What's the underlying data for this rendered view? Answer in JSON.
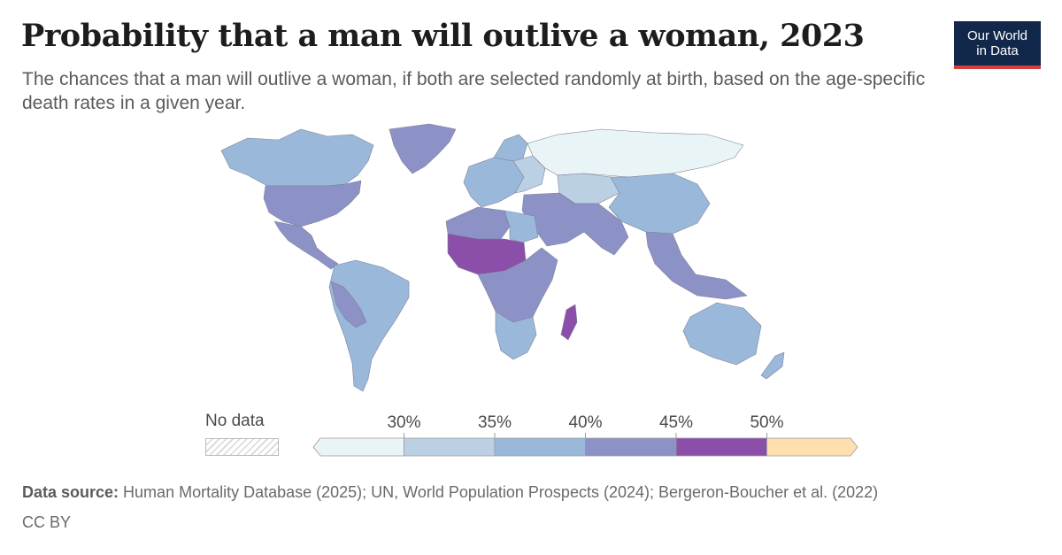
{
  "title": "Probability that a man will outlive a woman, 2023",
  "subtitle": "The chances that a man will outlive a woman, if both are selected randomly at birth, based on the age-specific death rates in a given year.",
  "logo": {
    "line1": "Our World",
    "line2": "in Data"
  },
  "chart_data": {
    "type": "choropleth",
    "year": 2023,
    "unit": "%",
    "legend": {
      "no_data_label": "No data",
      "thresholds": [
        "30%",
        "35%",
        "40%",
        "45%",
        "50%"
      ],
      "bins": [
        {
          "range": "<30%",
          "color": "#e8f4f6"
        },
        {
          "range": "30–35%",
          "color": "#bcd0e4"
        },
        {
          "range": "35–40%",
          "color": "#9ab9da"
        },
        {
          "range": "40–45%",
          "color": "#8c92c6"
        },
        {
          "range": "45–50%",
          "color": "#8b4ea9"
        },
        {
          "range": ">50%",
          "color": "#ffdfae"
        }
      ]
    },
    "regions": [
      {
        "region": "Russia",
        "bin": "<30%"
      },
      {
        "region": "Eastern Europe / Baltics",
        "bin": "30–35%"
      },
      {
        "region": "Kazakhstan / Central Asia",
        "bin": "30–35%"
      },
      {
        "region": "Western Europe",
        "bin": "35–40%"
      },
      {
        "region": "Canada",
        "bin": "35–40%"
      },
      {
        "region": "South America (most)",
        "bin": "35–40%"
      },
      {
        "region": "China / Mongolia",
        "bin": "35–40%"
      },
      {
        "region": "Australia",
        "bin": "35–40%"
      },
      {
        "region": "Southern Africa",
        "bin": "35–40%"
      },
      {
        "region": "Egypt / Libya",
        "bin": "35–40%"
      },
      {
        "region": "United States",
        "bin": "40–45%"
      },
      {
        "region": "Mexico / Central America",
        "bin": "40–45%"
      },
      {
        "region": "Greenland",
        "bin": "40–45%"
      },
      {
        "region": "Middle East / South Asia",
        "bin": "40–45%"
      },
      {
        "region": "Southeast Asia",
        "bin": "40–45%"
      },
      {
        "region": "Central & Eastern Africa",
        "bin": "40–45%"
      },
      {
        "region": "Bolivia / Peru",
        "bin": "40–45%"
      },
      {
        "region": "Sahel / West Africa",
        "bin": "45–50%"
      },
      {
        "region": "Madagascar",
        "bin": "45–50%"
      }
    ]
  },
  "source": {
    "label": "Data source:",
    "text": " Human Mortality Database (2025); UN, World Population Prospects (2024); Bergeron-Boucher et al. (2022)"
  },
  "license": "CC BY"
}
